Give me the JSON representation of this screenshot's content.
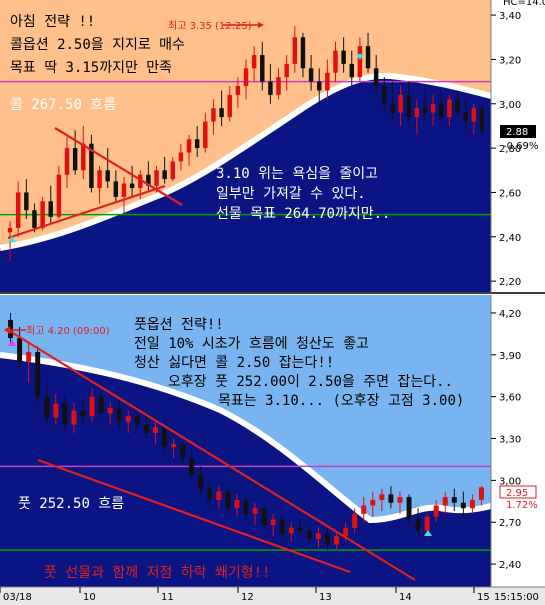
{
  "chart_data": [
    {
      "type": "candlestick",
      "title": "콜 267.50 흐름",
      "y_ticks": [
        3.4,
        3.2,
        3.0,
        2.8,
        2.6,
        2.4,
        2.2
      ],
      "ylim": [
        2.16,
        3.45
      ],
      "reference_lines": [
        {
          "value": 3.1,
          "color": "#c040c0"
        },
        {
          "value": 2.5,
          "color": "#00a000"
        }
      ],
      "last_price": "2.88",
      "change": "-0.69%",
      "top_right_label": "HC=14.0",
      "high_annotation": "최고 3.35 (12:25)",
      "annotations": [
        "아침 전략 !!",
        "콜옵션 2.50을 지지로 매수",
        "목표 딱 3.15까지만 만족",
        "콜 267.50 흐름",
        "3.10 위는 욕심을 줄이고",
        "일부만 가져갈 수 있다.",
        "선물 목표 264.70까지만.."
      ],
      "candles": [
        {
          "o": 2.42,
          "h": 2.47,
          "l": 2.29,
          "c": 2.44
        },
        {
          "o": 2.44,
          "h": 2.65,
          "l": 2.4,
          "c": 2.6
        },
        {
          "o": 2.6,
          "h": 2.66,
          "l": 2.48,
          "c": 2.52
        },
        {
          "o": 2.52,
          "h": 2.55,
          "l": 2.42,
          "c": 2.44
        },
        {
          "o": 2.44,
          "h": 2.58,
          "l": 2.43,
          "c": 2.56
        },
        {
          "o": 2.56,
          "h": 2.63,
          "l": 2.46,
          "c": 2.49
        },
        {
          "o": 2.49,
          "h": 2.72,
          "l": 2.48,
          "c": 2.68
        },
        {
          "o": 2.68,
          "h": 2.85,
          "l": 2.62,
          "c": 2.8
        },
        {
          "o": 2.8,
          "h": 2.88,
          "l": 2.68,
          "c": 2.7
        },
        {
          "o": 2.7,
          "h": 2.9,
          "l": 2.66,
          "c": 2.82
        },
        {
          "o": 2.82,
          "h": 2.86,
          "l": 2.6,
          "c": 2.62
        },
        {
          "o": 2.62,
          "h": 2.72,
          "l": 2.55,
          "c": 2.7
        },
        {
          "o": 2.7,
          "h": 2.8,
          "l": 2.62,
          "c": 2.65
        },
        {
          "o": 2.65,
          "h": 2.7,
          "l": 2.56,
          "c": 2.58
        },
        {
          "o": 2.58,
          "h": 2.67,
          "l": 2.5,
          "c": 2.64
        },
        {
          "o": 2.64,
          "h": 2.72,
          "l": 2.58,
          "c": 2.62
        },
        {
          "o": 2.62,
          "h": 2.7,
          "l": 2.57,
          "c": 2.68
        },
        {
          "o": 2.68,
          "h": 2.74,
          "l": 2.6,
          "c": 2.63
        },
        {
          "o": 2.63,
          "h": 2.72,
          "l": 2.6,
          "c": 2.7
        },
        {
          "o": 2.7,
          "h": 2.76,
          "l": 2.64,
          "c": 2.66
        },
        {
          "o": 2.66,
          "h": 2.76,
          "l": 2.65,
          "c": 2.74
        },
        {
          "o": 2.74,
          "h": 2.82,
          "l": 2.7,
          "c": 2.78
        },
        {
          "o": 2.78,
          "h": 2.86,
          "l": 2.72,
          "c": 2.84
        },
        {
          "o": 2.84,
          "h": 2.9,
          "l": 2.76,
          "c": 2.8
        },
        {
          "o": 2.8,
          "h": 2.96,
          "l": 2.78,
          "c": 2.92
        },
        {
          "o": 2.92,
          "h": 3.02,
          "l": 2.86,
          "c": 2.98
        },
        {
          "o": 2.98,
          "h": 3.06,
          "l": 2.9,
          "c": 2.94
        },
        {
          "o": 2.94,
          "h": 3.08,
          "l": 2.92,
          "c": 3.04
        },
        {
          "o": 3.04,
          "h": 3.12,
          "l": 2.98,
          "c": 3.08
        },
        {
          "o": 3.08,
          "h": 3.2,
          "l": 3.02,
          "c": 3.16
        },
        {
          "o": 3.16,
          "h": 3.26,
          "l": 3.1,
          "c": 3.22
        },
        {
          "o": 3.22,
          "h": 3.28,
          "l": 3.06,
          "c": 3.1
        },
        {
          "o": 3.1,
          "h": 3.18,
          "l": 3.0,
          "c": 3.04
        },
        {
          "o": 3.04,
          "h": 3.16,
          "l": 3.02,
          "c": 3.12
        },
        {
          "o": 3.12,
          "h": 3.22,
          "l": 3.06,
          "c": 3.18
        },
        {
          "o": 3.18,
          "h": 3.35,
          "l": 3.14,
          "c": 3.3
        },
        {
          "o": 3.3,
          "h": 3.32,
          "l": 3.12,
          "c": 3.16
        },
        {
          "o": 3.16,
          "h": 3.22,
          "l": 3.06,
          "c": 3.1
        },
        {
          "o": 3.1,
          "h": 3.16,
          "l": 3.0,
          "c": 3.06
        },
        {
          "o": 3.06,
          "h": 3.2,
          "l": 3.02,
          "c": 3.14
        },
        {
          "o": 3.14,
          "h": 3.28,
          "l": 3.1,
          "c": 3.24
        },
        {
          "o": 3.24,
          "h": 3.3,
          "l": 3.14,
          "c": 3.18
        },
        {
          "o": 3.18,
          "h": 3.24,
          "l": 3.08,
          "c": 3.12
        },
        {
          "o": 3.12,
          "h": 3.3,
          "l": 3.1,
          "c": 3.26
        },
        {
          "o": 3.26,
          "h": 3.32,
          "l": 3.14,
          "c": 3.16
        },
        {
          "o": 3.16,
          "h": 3.22,
          "l": 3.04,
          "c": 3.08
        },
        {
          "o": 3.08,
          "h": 3.12,
          "l": 2.96,
          "c": 3.0
        },
        {
          "o": 3.0,
          "h": 3.1,
          "l": 2.92,
          "c": 2.96
        },
        {
          "o": 2.96,
          "h": 3.08,
          "l": 2.9,
          "c": 3.04
        },
        {
          "o": 3.04,
          "h": 3.1,
          "l": 2.92,
          "c": 2.94
        },
        {
          "o": 2.94,
          "h": 3.02,
          "l": 2.86,
          "c": 2.98
        },
        {
          "o": 2.98,
          "h": 3.06,
          "l": 2.92,
          "c": 2.96
        },
        {
          "o": 2.96,
          "h": 3.04,
          "l": 2.9,
          "c": 3.0
        },
        {
          "o": 3.0,
          "h": 3.06,
          "l": 2.92,
          "c": 2.94
        },
        {
          "o": 2.94,
          "h": 3.04,
          "l": 2.9,
          "c": 3.02
        },
        {
          "o": 3.02,
          "h": 3.06,
          "l": 2.94,
          "c": 2.96
        },
        {
          "o": 2.96,
          "h": 3.02,
          "l": 2.88,
          "c": 2.92
        },
        {
          "o": 2.92,
          "h": 3.0,
          "l": 2.86,
          "c": 2.98
        },
        {
          "o": 2.98,
          "h": 3.0,
          "l": 2.86,
          "c": 2.88
        }
      ]
    },
    {
      "type": "candlestick",
      "title": "풋 252.50 흐름",
      "x_ticks": [
        "03/18",
        "10",
        "11",
        "12",
        "13",
        "14",
        "15"
      ],
      "y_ticks": [
        4.2,
        3.9,
        3.6,
        3.3,
        3.0,
        2.7,
        2.4
      ],
      "ylim": [
        2.25,
        4.3
      ],
      "reference_lines": [
        {
          "value": 3.1,
          "color": "#c040c0"
        },
        {
          "value": 2.5,
          "color": "#00a000"
        }
      ],
      "last_price": "2.95",
      "change": "1.72%",
      "time_label": "15:15:00",
      "high_annotation": "최고 4.20 (09:00)",
      "annotations": [
        "풋옵션 전략!!",
        "전일 10% 시초가 흐름에 청산도 좋고",
        "청산 싫다면 콜 2.50 잡는다!!",
        "오후장 풋 252.00이 2.50을 주면 잡는다..",
        "목표는 3.10... (오후장 고점 3.00)",
        "풋 252.50 흐름",
        "풋 선물과 함께 저점 하락 쐐기형!!"
      ],
      "candles": [
        {
          "o": 4.15,
          "h": 4.2,
          "l": 3.98,
          "c": 4.02
        },
        {
          "o": 4.02,
          "h": 4.1,
          "l": 3.8,
          "c": 3.85
        },
        {
          "o": 3.85,
          "h": 3.98,
          "l": 3.7,
          "c": 3.92
        },
        {
          "o": 3.92,
          "h": 3.96,
          "l": 3.55,
          "c": 3.6
        },
        {
          "o": 3.6,
          "h": 3.7,
          "l": 3.4,
          "c": 3.45
        },
        {
          "o": 3.45,
          "h": 3.62,
          "l": 3.4,
          "c": 3.55
        },
        {
          "o": 3.55,
          "h": 3.6,
          "l": 3.36,
          "c": 3.4
        },
        {
          "o": 3.4,
          "h": 3.56,
          "l": 3.34,
          "c": 3.5
        },
        {
          "o": 3.5,
          "h": 3.58,
          "l": 3.4,
          "c": 3.46
        },
        {
          "o": 3.46,
          "h": 3.66,
          "l": 3.42,
          "c": 3.6
        },
        {
          "o": 3.6,
          "h": 3.64,
          "l": 3.44,
          "c": 3.48
        },
        {
          "o": 3.48,
          "h": 3.56,
          "l": 3.4,
          "c": 3.52
        },
        {
          "o": 3.52,
          "h": 3.58,
          "l": 3.38,
          "c": 3.42
        },
        {
          "o": 3.42,
          "h": 3.5,
          "l": 3.34,
          "c": 3.46
        },
        {
          "o": 3.46,
          "h": 3.54,
          "l": 3.36,
          "c": 3.4
        },
        {
          "o": 3.4,
          "h": 3.48,
          "l": 3.3,
          "c": 3.34
        },
        {
          "o": 3.34,
          "h": 3.42,
          "l": 3.26,
          "c": 3.38
        },
        {
          "o": 3.38,
          "h": 3.4,
          "l": 3.2,
          "c": 3.24
        },
        {
          "o": 3.24,
          "h": 3.3,
          "l": 3.16,
          "c": 3.26
        },
        {
          "o": 3.26,
          "h": 3.28,
          "l": 3.12,
          "c": 3.16
        },
        {
          "o": 3.16,
          "h": 3.22,
          "l": 3.0,
          "c": 3.04
        },
        {
          "o": 3.04,
          "h": 3.1,
          "l": 2.9,
          "c": 2.94
        },
        {
          "o": 2.94,
          "h": 3.0,
          "l": 2.82,
          "c": 2.86
        },
        {
          "o": 2.86,
          "h": 2.96,
          "l": 2.8,
          "c": 2.92
        },
        {
          "o": 2.92,
          "h": 2.94,
          "l": 2.76,
          "c": 2.8
        },
        {
          "o": 2.8,
          "h": 2.9,
          "l": 2.74,
          "c": 2.86
        },
        {
          "o": 2.86,
          "h": 2.88,
          "l": 2.72,
          "c": 2.76
        },
        {
          "o": 2.76,
          "h": 2.84,
          "l": 2.68,
          "c": 2.8
        },
        {
          "o": 2.8,
          "h": 2.82,
          "l": 2.64,
          "c": 2.68
        },
        {
          "o": 2.68,
          "h": 2.76,
          "l": 2.6,
          "c": 2.72
        },
        {
          "o": 2.72,
          "h": 2.74,
          "l": 2.58,
          "c": 2.62
        },
        {
          "o": 2.62,
          "h": 2.7,
          "l": 2.56,
          "c": 2.66
        },
        {
          "o": 2.66,
          "h": 2.72,
          "l": 2.6,
          "c": 2.64
        },
        {
          "o": 2.64,
          "h": 2.68,
          "l": 2.54,
          "c": 2.58
        },
        {
          "o": 2.58,
          "h": 2.66,
          "l": 2.52,
          "c": 2.62
        },
        {
          "o": 2.62,
          "h": 2.66,
          "l": 2.5,
          "c": 2.54
        },
        {
          "o": 2.54,
          "h": 2.64,
          "l": 2.5,
          "c": 2.6
        },
        {
          "o": 2.6,
          "h": 2.7,
          "l": 2.56,
          "c": 2.66
        },
        {
          "o": 2.66,
          "h": 2.8,
          "l": 2.62,
          "c": 2.76
        },
        {
          "o": 2.76,
          "h": 2.88,
          "l": 2.7,
          "c": 2.82
        },
        {
          "o": 2.82,
          "h": 2.92,
          "l": 2.74,
          "c": 2.86
        },
        {
          "o": 2.86,
          "h": 2.94,
          "l": 2.78,
          "c": 2.9
        },
        {
          "o": 2.9,
          "h": 2.96,
          "l": 2.8,
          "c": 2.84
        },
        {
          "o": 2.84,
          "h": 2.92,
          "l": 2.76,
          "c": 2.88
        },
        {
          "o": 2.88,
          "h": 2.9,
          "l": 2.68,
          "c": 2.72
        },
        {
          "o": 2.72,
          "h": 2.8,
          "l": 2.6,
          "c": 2.64
        },
        {
          "o": 2.64,
          "h": 2.76,
          "l": 2.6,
          "c": 2.74
        },
        {
          "o": 2.74,
          "h": 2.86,
          "l": 2.7,
          "c": 2.82
        },
        {
          "o": 2.82,
          "h": 2.92,
          "l": 2.76,
          "c": 2.88
        },
        {
          "o": 2.88,
          "h": 2.94,
          "l": 2.78,
          "c": 2.84
        },
        {
          "o": 2.84,
          "h": 2.92,
          "l": 2.74,
          "c": 2.8
        },
        {
          "o": 2.8,
          "h": 2.9,
          "l": 2.76,
          "c": 2.86
        },
        {
          "o": 2.86,
          "h": 2.96,
          "l": 2.82,
          "c": 2.95
        }
      ]
    }
  ]
}
